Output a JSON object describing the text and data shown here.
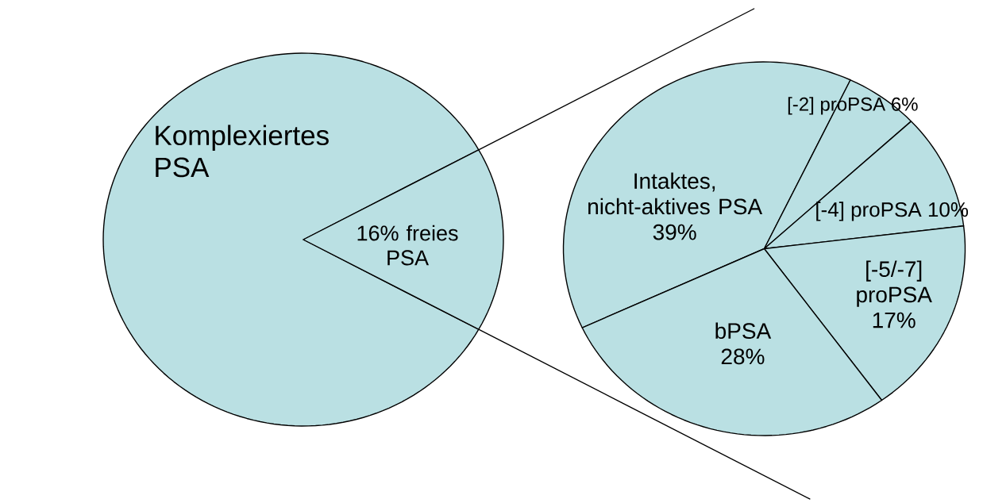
{
  "chart_data": [
    {
      "type": "pie",
      "categories": [
        "Komplexiertes PSA",
        "16% freies PSA"
      ],
      "values": [
        84,
        16
      ],
      "colors": [
        "#bae0e3",
        "#bae0e3"
      ]
    },
    {
      "type": "pie",
      "categories": [
        "Intaktes, nicht-aktives PSA",
        "[-2] proPSA",
        "[-4] proPSA",
        "[-5/-7] proPSA",
        "bPSA"
      ],
      "values": [
        39,
        6,
        10,
        17,
        28
      ],
      "value_labels": [
        "39%",
        "6%",
        "10%",
        "17%",
        "28%"
      ],
      "colors": [
        "#bae0e3",
        "#bae0e3",
        "#bae0e3",
        "#bae0e3",
        "#bae0e3"
      ]
    }
  ]
}
